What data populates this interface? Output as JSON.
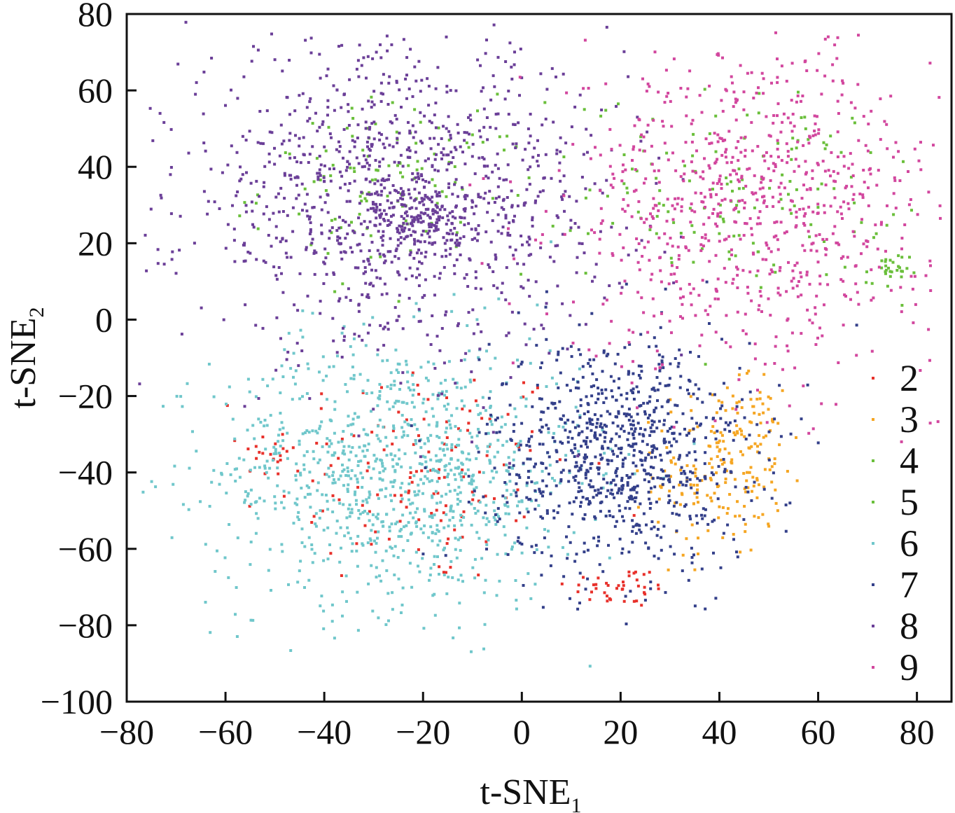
{
  "chart_data": {
    "type": "scatter",
    "title": "",
    "xlabel": {
      "main": "t-SNE",
      "subscript": "1"
    },
    "ylabel": {
      "main": "t-SNE",
      "subscript": "2"
    },
    "xlim": [
      -80,
      87
    ],
    "ylim": [
      -100,
      80
    ],
    "x_ticks": [
      -80,
      -60,
      -40,
      -20,
      0,
      20,
      40,
      60,
      80
    ],
    "x_tick_labels": [
      "−80",
      "−60",
      "−40",
      "−20",
      "0",
      "20",
      "40",
      "60",
      "80"
    ],
    "y_ticks": [
      80,
      60,
      40,
      20,
      0,
      -20,
      -40,
      -60,
      -80,
      -100
    ],
    "y_tick_labels": [
      "80",
      "60",
      "40",
      "20",
      "0",
      "−20",
      "−40",
      "−60",
      "−80",
      "−100"
    ],
    "grid": false,
    "legend_position": "bottom-right",
    "series": [
      {
        "name": "2",
        "color": "#e8312b",
        "center": [
          -20,
          -40
        ],
        "spread": [
          28,
          28
        ],
        "count": 130,
        "extra": [
          {
            "center": [
              20,
              -70
            ],
            "spread": [
              10,
              5
            ],
            "count": 40
          },
          {
            "center": [
              -50,
              -35
            ],
            "spread": [
              6,
              6
            ],
            "count": 20
          }
        ]
      },
      {
        "name": "3",
        "color": "#f5a623",
        "center": [
          40,
          -40
        ],
        "spread": [
          12,
          20
        ],
        "count": 170,
        "extra": [
          {
            "center": [
              46,
              -28
            ],
            "spread": [
              6,
              10
            ],
            "count": 40
          }
        ]
      },
      {
        "name": "4",
        "color": "#6abf3b",
        "center": [
          -25,
          35
        ],
        "spread": [
          25,
          20
        ],
        "count": 120,
        "extra": []
      },
      {
        "name": "5",
        "color": "#6abf3b",
        "center": [
          45,
          35
        ],
        "spread": [
          28,
          22
        ],
        "count": 140,
        "extra": [
          {
            "center": [
              74,
              12
            ],
            "spread": [
              4,
              5
            ],
            "count": 30
          }
        ]
      },
      {
        "name": "6",
        "color": "#70c7cb",
        "center": [
          -25,
          -40
        ],
        "spread": [
          34,
          32
        ],
        "count": 1000,
        "extra": []
      },
      {
        "name": "7",
        "color": "#34408a",
        "center": [
          20,
          -35
        ],
        "spread": [
          24,
          28
        ],
        "count": 850,
        "extra": []
      },
      {
        "name": "8",
        "color": "#6b3f98",
        "center": [
          -25,
          32
        ],
        "spread": [
          40,
          36
        ],
        "count": 1100,
        "extra": [
          {
            "center": [
              -20,
              25
            ],
            "spread": [
              10,
              8
            ],
            "count": 150
          }
        ]
      },
      {
        "name": "9",
        "color": "#d2479e",
        "center": [
          47,
          30
        ],
        "spread": [
          34,
          38
        ],
        "count": 800,
        "extra": []
      }
    ]
  }
}
